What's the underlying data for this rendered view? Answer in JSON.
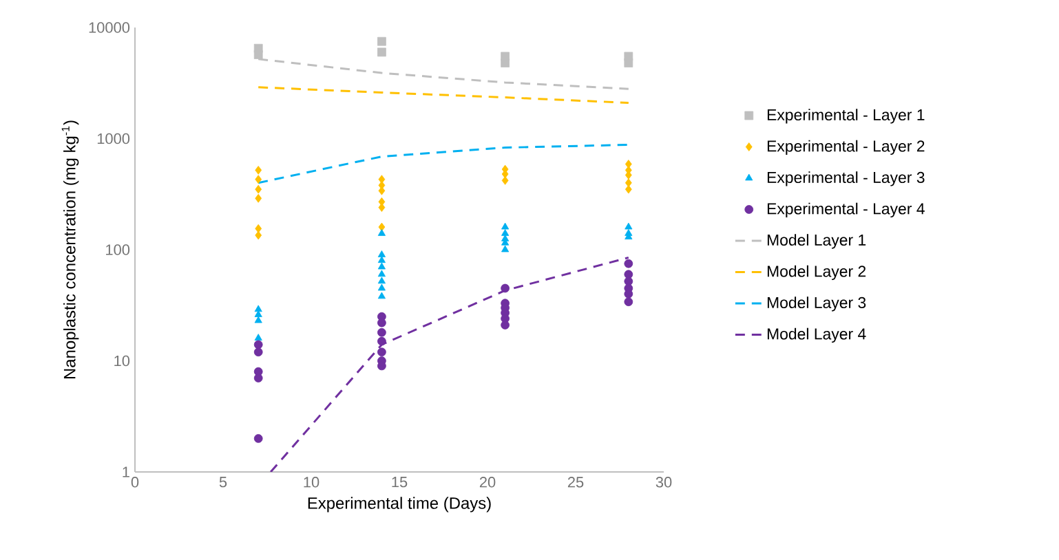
{
  "chart_data": {
    "type": "scatter",
    "xlabel": "Experimental time (Days)",
    "ylabel": "Nanoplastic concentration (mg kg$^{-1}$)",
    "xlim": [
      0,
      30
    ],
    "xticks": [
      0,
      5,
      10,
      15,
      20,
      25,
      30
    ],
    "ylim": [
      1,
      10000
    ],
    "yticks": [
      1,
      10,
      100,
      1000,
      10000
    ],
    "log": "y",
    "grid": false,
    "legend": "right",
    "series": [
      {
        "name": "Experimental - Layer 1",
        "type": "scatter",
        "marker": "square",
        "color": "#bfbfbf",
        "x": [
          7,
          7,
          14,
          14,
          21,
          21,
          28,
          28
        ],
        "values": [
          6500,
          5700,
          7500,
          6000,
          5500,
          4800,
          5500,
          4800
        ]
      },
      {
        "name": "Experimental - Layer 2",
        "type": "scatter",
        "marker": "diamond",
        "color": "#ffc000",
        "x": [
          7,
          7,
          7,
          7,
          7,
          7,
          14,
          14,
          14,
          14,
          14,
          14,
          21,
          21,
          21,
          28,
          28,
          28,
          28,
          28
        ],
        "values": [
          520,
          430,
          350,
          290,
          155,
          135,
          430,
          380,
          340,
          270,
          240,
          160,
          530,
          480,
          420,
          590,
          520,
          470,
          400,
          350
        ]
      },
      {
        "name": "Experimental - Layer 3",
        "type": "scatter",
        "marker": "triangle",
        "color": "#00b0f0",
        "x": [
          7,
          7,
          7,
          7,
          14,
          14,
          14,
          14,
          14,
          14,
          14,
          14,
          21,
          21,
          21,
          21,
          21,
          28,
          28,
          28
        ],
        "values": [
          29,
          26,
          23,
          16,
          140,
          90,
          80,
          70,
          60,
          52,
          45,
          38,
          160,
          140,
          125,
          115,
          100,
          160,
          140,
          130
        ]
      },
      {
        "name": "Experimental - Layer 4",
        "type": "scatter",
        "marker": "circle",
        "color": "#7030a0",
        "x": [
          7,
          7,
          7,
          7,
          7,
          14,
          14,
          14,
          14,
          14,
          14,
          14,
          21,
          21,
          21,
          21,
          21,
          21,
          28,
          28,
          28,
          28,
          28,
          28
        ],
        "values": [
          14,
          12,
          8,
          7,
          2,
          25,
          22,
          18,
          15,
          12,
          10,
          9,
          45,
          33,
          30,
          27,
          24,
          21,
          75,
          60,
          52,
          45,
          40,
          34
        ]
      },
      {
        "name": "Model Layer 1",
        "type": "line",
        "line_style": "dashed",
        "color": "#bfbfbf",
        "x": [
          7,
          14,
          21,
          28
        ],
        "values": [
          5200,
          3900,
          3200,
          2800
        ]
      },
      {
        "name": "Model Layer 2",
        "type": "line",
        "line_style": "dashed",
        "color": "#ffc000",
        "x": [
          7,
          14,
          21,
          28
        ],
        "values": [
          2900,
          2600,
          2350,
          2100
        ]
      },
      {
        "name": "Model Layer 3",
        "type": "line",
        "line_style": "dashed",
        "color": "#00b0f0",
        "x": [
          7,
          14,
          21,
          28
        ],
        "values": [
          400,
          690,
          830,
          880
        ]
      },
      {
        "name": "Model Layer 4",
        "type": "line",
        "line_style": "dashed",
        "color": "#7030a0",
        "x": [
          7.7,
          14,
          21,
          28
        ],
        "values": [
          1,
          14,
          43,
          85
        ]
      }
    ]
  }
}
